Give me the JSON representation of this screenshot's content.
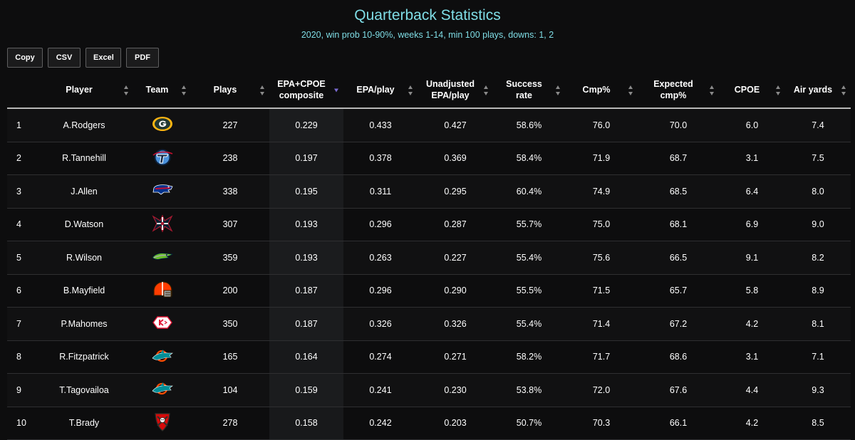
{
  "header": {
    "title": "Quarterback Statistics",
    "subtitle": "2020, win prob 10-90%, weeks 1-14, min 100 plays, downs: 1, 2"
  },
  "buttons": {
    "copy": "Copy",
    "csv": "CSV",
    "excel": "Excel",
    "pdf": "PDF"
  },
  "columns": {
    "player": "Player",
    "team": "Team",
    "plays": "Plays",
    "composite_line1": "EPA+CPOE",
    "composite_line2": "composite",
    "epa_play": "EPA/play",
    "unadj_line1": "Unadjusted",
    "unadj_line2": "EPA/play",
    "success_line1": "Success",
    "success_line2": "rate",
    "cmp": "Cmp%",
    "exp_line1": "Expected",
    "exp_line2": "cmp%",
    "cpoe": "CPOE",
    "air_yards": "Air yards"
  },
  "colors": {
    "background": "#0d0d0e",
    "title": "#7fdde6",
    "sort_active": "#7a6bd1"
  },
  "rows": [
    {
      "rank": "1",
      "player": "A.Rodgers",
      "team": "packers-logo",
      "plays": "227",
      "composite": "0.229",
      "epa": "0.433",
      "unadj": "0.427",
      "success": "58.6%",
      "cmp": "76.0",
      "exp": "70.0",
      "cpoe": "6.0",
      "air": "7.4"
    },
    {
      "rank": "2",
      "player": "R.Tannehill",
      "team": "titans-logo",
      "plays": "238",
      "composite": "0.197",
      "epa": "0.378",
      "unadj": "0.369",
      "success": "58.4%",
      "cmp": "71.9",
      "exp": "68.7",
      "cpoe": "3.1",
      "air": "7.5"
    },
    {
      "rank": "3",
      "player": "J.Allen",
      "team": "bills-logo",
      "plays": "338",
      "composite": "0.195",
      "epa": "0.311",
      "unadj": "0.295",
      "success": "60.4%",
      "cmp": "74.9",
      "exp": "68.5",
      "cpoe": "6.4",
      "air": "8.0"
    },
    {
      "rank": "4",
      "player": "D.Watson",
      "team": "texans-logo",
      "plays": "307",
      "composite": "0.193",
      "epa": "0.296",
      "unadj": "0.287",
      "success": "55.7%",
      "cmp": "75.0",
      "exp": "68.1",
      "cpoe": "6.9",
      "air": "9.0"
    },
    {
      "rank": "5",
      "player": "R.Wilson",
      "team": "seahawks-logo",
      "plays": "359",
      "composite": "0.193",
      "epa": "0.263",
      "unadj": "0.227",
      "success": "55.4%",
      "cmp": "75.6",
      "exp": "66.5",
      "cpoe": "9.1",
      "air": "8.2"
    },
    {
      "rank": "6",
      "player": "B.Mayfield",
      "team": "browns-logo",
      "plays": "200",
      "composite": "0.187",
      "epa": "0.296",
      "unadj": "0.290",
      "success": "55.5%",
      "cmp": "71.5",
      "exp": "65.7",
      "cpoe": "5.8",
      "air": "8.9"
    },
    {
      "rank": "7",
      "player": "P.Mahomes",
      "team": "chiefs-logo",
      "plays": "350",
      "composite": "0.187",
      "epa": "0.326",
      "unadj": "0.326",
      "success": "55.4%",
      "cmp": "71.4",
      "exp": "67.2",
      "cpoe": "4.2",
      "air": "8.1"
    },
    {
      "rank": "8",
      "player": "R.Fitzpatrick",
      "team": "dolphins-logo",
      "plays": "165",
      "composite": "0.164",
      "epa": "0.274",
      "unadj": "0.271",
      "success": "58.2%",
      "cmp": "71.7",
      "exp": "68.6",
      "cpoe": "3.1",
      "air": "7.1"
    },
    {
      "rank": "9",
      "player": "T.Tagovailoa",
      "team": "dolphins-logo",
      "plays": "104",
      "composite": "0.159",
      "epa": "0.241",
      "unadj": "0.230",
      "success": "53.8%",
      "cmp": "72.0",
      "exp": "67.6",
      "cpoe": "4.4",
      "air": "9.3"
    },
    {
      "rank": "10",
      "player": "T.Brady",
      "team": "buccaneers-logo",
      "plays": "278",
      "composite": "0.158",
      "epa": "0.242",
      "unadj": "0.203",
      "success": "50.7%",
      "cmp": "70.3",
      "exp": "66.1",
      "cpoe": "4.2",
      "air": "8.5"
    }
  ]
}
